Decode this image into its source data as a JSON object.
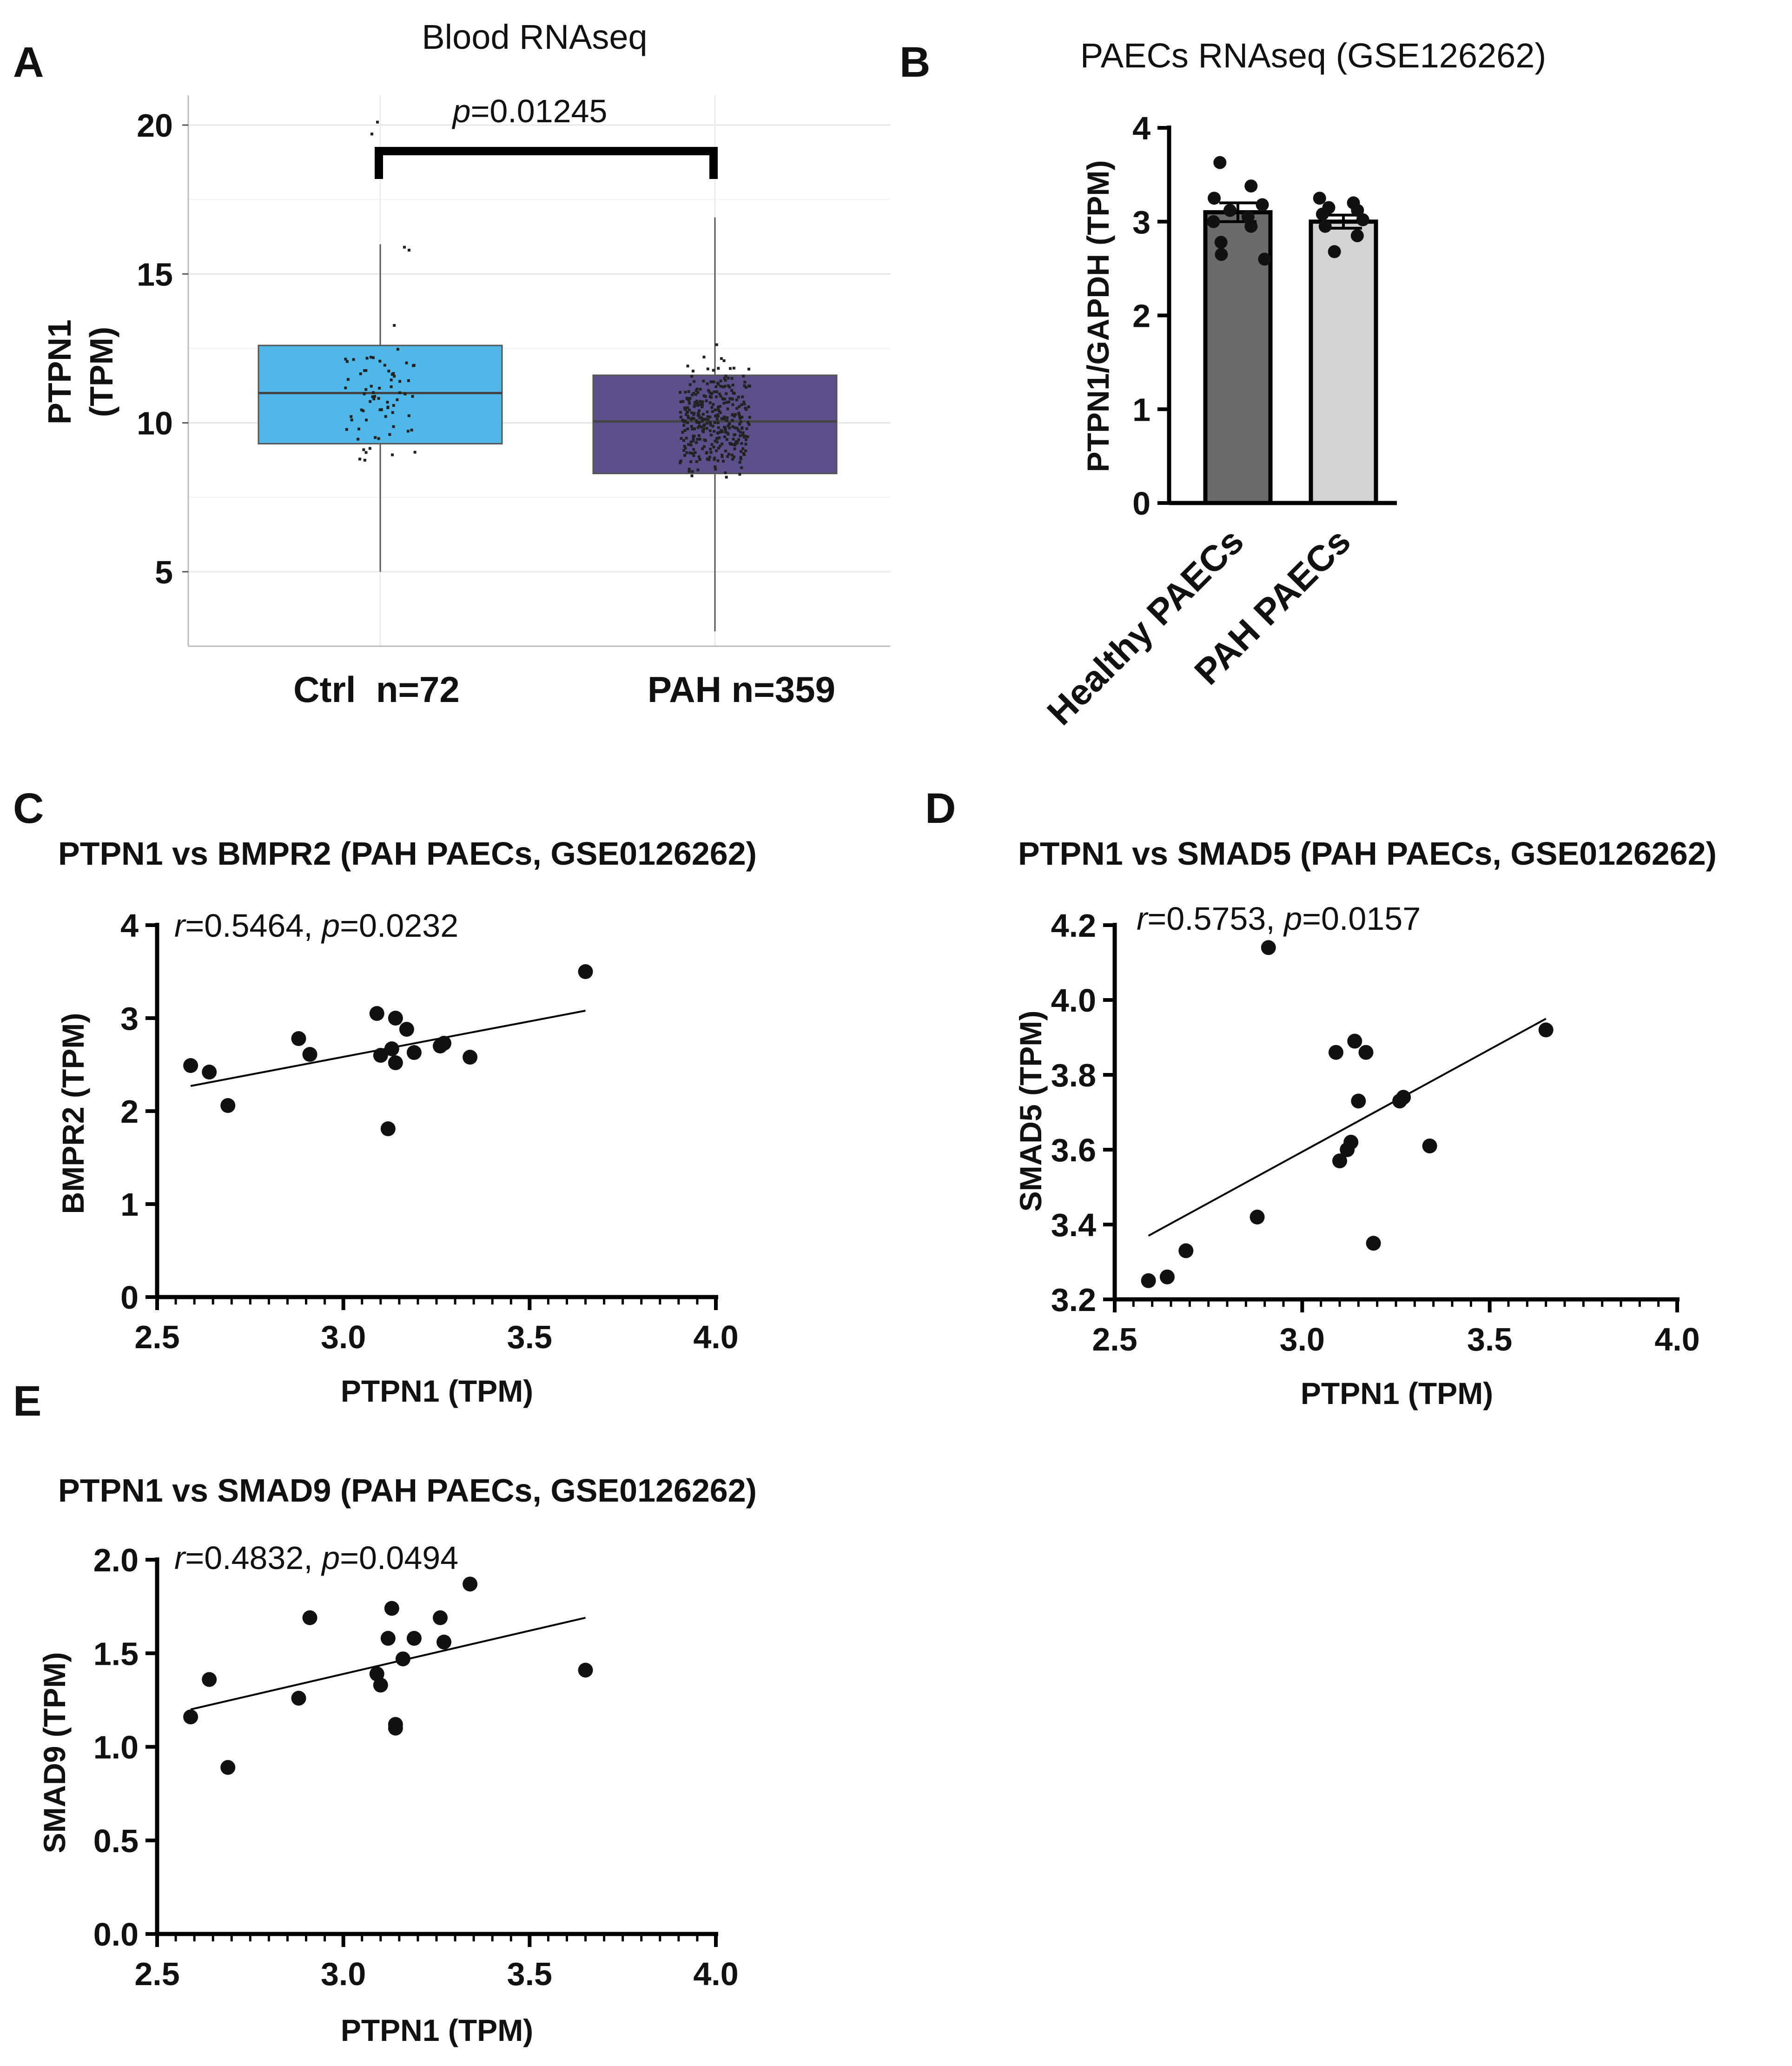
{
  "colors": {
    "ctrl_box": "#4FB8E8",
    "pah_box": "#5C4F8A",
    "healthy_bar": "#6B6B6B",
    "pah_bar": "#D3D3D3",
    "points": "#111111"
  },
  "chart_data": [
    {
      "id": "A",
      "letter": "A",
      "type": "box",
      "title": "Blood RNAseq",
      "ylabel": "PTPN1 (TPM)",
      "ylabel_lines": [
        "PTPN1",
        "(TPM)"
      ],
      "ylim": [
        2.5,
        21
      ],
      "yticks": [
        5,
        10,
        15,
        20
      ],
      "grid": true,
      "categories": [
        "Ctrl  n=72",
        "PAH n=359"
      ],
      "boxes": [
        {
          "name": "Ctrl",
          "n": 72,
          "q1": 9.3,
          "median": 11.0,
          "q3": 12.6,
          "whisker_low": 5.0,
          "whisker_high": 16.0
        },
        {
          "name": "PAH",
          "n": 359,
          "q1": 8.3,
          "median": 10.05,
          "q3": 11.6,
          "whisker_low": 3.0,
          "whisker_high": 16.9
        }
      ],
      "annotation": {
        "p_label": "p",
        "p_value": "=0.01245"
      }
    },
    {
      "id": "B",
      "letter": "B",
      "type": "bar",
      "title": "PAECs RNAseq (GSE126262)",
      "ylabel": "PTPN1/GAPDH (TPM)",
      "ylim": [
        0,
        4
      ],
      "yticks": [
        "0",
        "1",
        "2",
        "3",
        "4"
      ],
      "categories": [
        "Healthy PAECs",
        "PAH PAECs"
      ],
      "values": [
        3.1,
        3.0
      ],
      "errors": [
        0.1,
        0.07
      ],
      "points": [
        [
          3.63,
          3.38,
          3.25,
          3.18,
          3.12,
          3.05,
          3.0,
          2.95,
          2.78,
          2.6,
          2.65
        ],
        [
          3.25,
          3.2,
          3.15,
          3.12,
          3.08,
          3.02,
          2.95,
          2.85,
          2.68
        ]
      ]
    },
    {
      "id": "C",
      "letter": "C",
      "type": "scatter",
      "title": "PTPN1 vs BMPR2 (PAH PAECs, GSE0126262)",
      "xlabel": "PTPN1 (TPM)",
      "ylabel": "BMPR2 (TPM)",
      "xlim": [
        2.5,
        4.0
      ],
      "ylim": [
        0,
        4
      ],
      "xticks": [
        "2.5",
        "3.0",
        "3.5",
        "4.0"
      ],
      "yticks": [
        "0",
        "1",
        "2",
        "3",
        "4"
      ],
      "annotation": {
        "r_label": "r",
        "r_value": "=0.5464, ",
        "p_label": "p",
        "p_value": "=0.0232"
      },
      "points": [
        [
          2.59,
          2.49
        ],
        [
          2.64,
          2.42
        ],
        [
          2.69,
          2.06
        ],
        [
          2.88,
          2.78
        ],
        [
          2.91,
          2.61
        ],
        [
          3.09,
          3.05
        ],
        [
          3.1,
          2.6
        ],
        [
          3.12,
          1.81
        ],
        [
          3.13,
          2.67
        ],
        [
          3.14,
          3.0
        ],
        [
          3.14,
          2.52
        ],
        [
          3.17,
          2.88
        ],
        [
          3.19,
          2.63
        ],
        [
          3.26,
          2.7
        ],
        [
          3.27,
          2.73
        ],
        [
          3.34,
          2.58
        ],
        [
          3.65,
          3.5
        ]
      ],
      "fit": {
        "x": [
          2.59,
          3.65
        ],
        "y": [
          2.27,
          3.08
        ]
      }
    },
    {
      "id": "D",
      "letter": "D",
      "type": "scatter",
      "title": "PTPN1 vs SMAD5 (PAH PAECs, GSE0126262)",
      "xlabel": "PTPN1 (TPM)",
      "ylabel": "SMAD5 (TPM)",
      "xlim": [
        2.5,
        4.0
      ],
      "ylim": [
        3.2,
        4.2
      ],
      "xticks": [
        "2.5",
        "3.0",
        "3.5",
        "4.0"
      ],
      "yticks": [
        "3.2",
        "3.4",
        "3.6",
        "3.8",
        "4.0",
        "4.2"
      ],
      "annotation": {
        "r_label": "r",
        "r_value": "=0.5753, ",
        "p_label": "p",
        "p_value": "=0.0157"
      },
      "points": [
        [
          2.59,
          3.25
        ],
        [
          2.64,
          3.26
        ],
        [
          2.69,
          3.33
        ],
        [
          2.88,
          3.42
        ],
        [
          2.91,
          4.14
        ],
        [
          3.09,
          3.86
        ],
        [
          3.1,
          3.57
        ],
        [
          3.12,
          3.6
        ],
        [
          3.13,
          3.62
        ],
        [
          3.14,
          3.89
        ],
        [
          3.15,
          3.73
        ],
        [
          3.17,
          3.86
        ],
        [
          3.19,
          3.35
        ],
        [
          3.26,
          3.73
        ],
        [
          3.27,
          3.74
        ],
        [
          3.34,
          3.61
        ],
        [
          3.65,
          3.92
        ]
      ],
      "fit": {
        "x": [
          2.59,
          3.65
        ],
        "y": [
          3.37,
          3.95
        ]
      }
    },
    {
      "id": "E",
      "letter": "E",
      "type": "scatter",
      "title": "PTPN1 vs SMAD9 (PAH PAECs, GSE0126262)",
      "xlabel": "PTPN1 (TPM)",
      "ylabel": "SMAD9 (TPM)",
      "xlim": [
        2.5,
        4.0
      ],
      "ylim": [
        0,
        2
      ],
      "xticks": [
        "2.5",
        "3.0",
        "3.5",
        "4.0"
      ],
      "yticks": [
        "0.0",
        "0.5",
        "1.0",
        "1.5",
        "2.0"
      ],
      "annotation": {
        "r_label": "r",
        "r_value": "=0.4832, ",
        "p_label": "p",
        "p_value": "=0.0494"
      },
      "points": [
        [
          2.59,
          1.16
        ],
        [
          2.64,
          1.36
        ],
        [
          2.69,
          0.89
        ],
        [
          2.88,
          1.26
        ],
        [
          2.91,
          1.69
        ],
        [
          3.09,
          1.39
        ],
        [
          3.1,
          1.33
        ],
        [
          3.12,
          1.58
        ],
        [
          3.13,
          1.74
        ],
        [
          3.14,
          1.1
        ],
        [
          3.14,
          1.12
        ],
        [
          3.16,
          1.47
        ],
        [
          3.19,
          1.58
        ],
        [
          3.26,
          1.69
        ],
        [
          3.27,
          1.56
        ],
        [
          3.34,
          1.87
        ],
        [
          3.65,
          1.41
        ]
      ],
      "fit": {
        "x": [
          2.59,
          3.65
        ],
        "y": [
          1.2,
          1.69
        ]
      }
    }
  ]
}
